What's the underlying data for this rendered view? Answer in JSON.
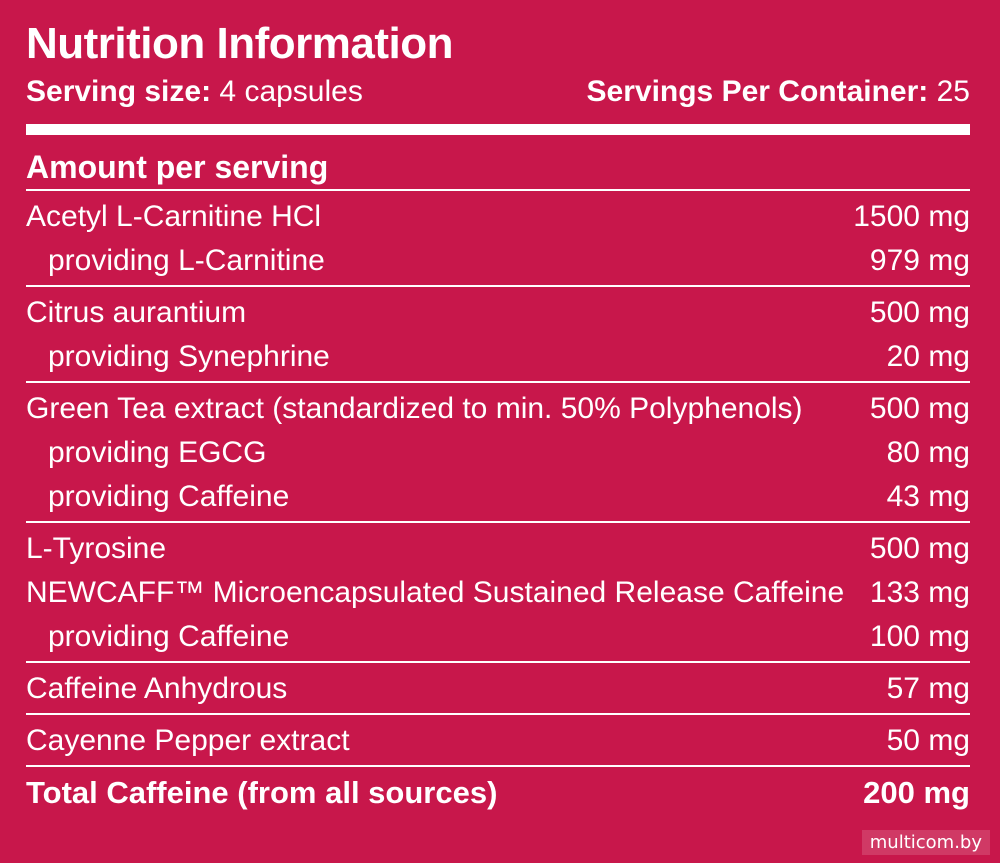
{
  "label": {
    "title": "Nutrition Information",
    "serving_size_label": "Serving size:",
    "serving_size_value": "4 capsules",
    "servings_label": "Servings Per Container:",
    "servings_value": "25",
    "amount_header": "Amount per serving",
    "colors": {
      "background": "#c8174b",
      "text": "#ffffff"
    }
  },
  "groups": [
    {
      "rows": [
        {
          "name": "Acetyl L-Carnitine HCl",
          "value": "1500 mg"
        },
        {
          "name": "providing L-Carnitine",
          "value": "979 mg"
        }
      ]
    },
    {
      "rows": [
        {
          "name": "Citrus aurantium",
          "value": "500 mg"
        },
        {
          "name": "providing Synephrine",
          "value": "20 mg"
        }
      ]
    },
    {
      "rows": [
        {
          "name": "Green Tea extract (standardized to min. 50% Polyphenols)",
          "value": "500 mg"
        },
        {
          "name": "providing EGCG",
          "value": "80 mg"
        },
        {
          "name": "providing Caffeine",
          "value": "43 mg"
        }
      ]
    },
    {
      "rows": [
        {
          "name": "L-Tyrosine",
          "value": "500 mg"
        },
        {
          "name": "NEWCAFF™ Microencapsulated Sustained Release Caffeine",
          "value": "133 mg"
        },
        {
          "name": "providing Caffeine",
          "value": "100 mg"
        }
      ]
    },
    {
      "rows": [
        {
          "name": "Caffeine Anhydrous",
          "value": "57 mg"
        }
      ]
    },
    {
      "rows": [
        {
          "name": "Cayenne Pepper extract",
          "value": "50 mg"
        }
      ]
    },
    {
      "rows": [
        {
          "name": "Total Caffeine (from all sources)",
          "value": "200 mg"
        }
      ]
    }
  ],
  "watermark": "multicom.by"
}
